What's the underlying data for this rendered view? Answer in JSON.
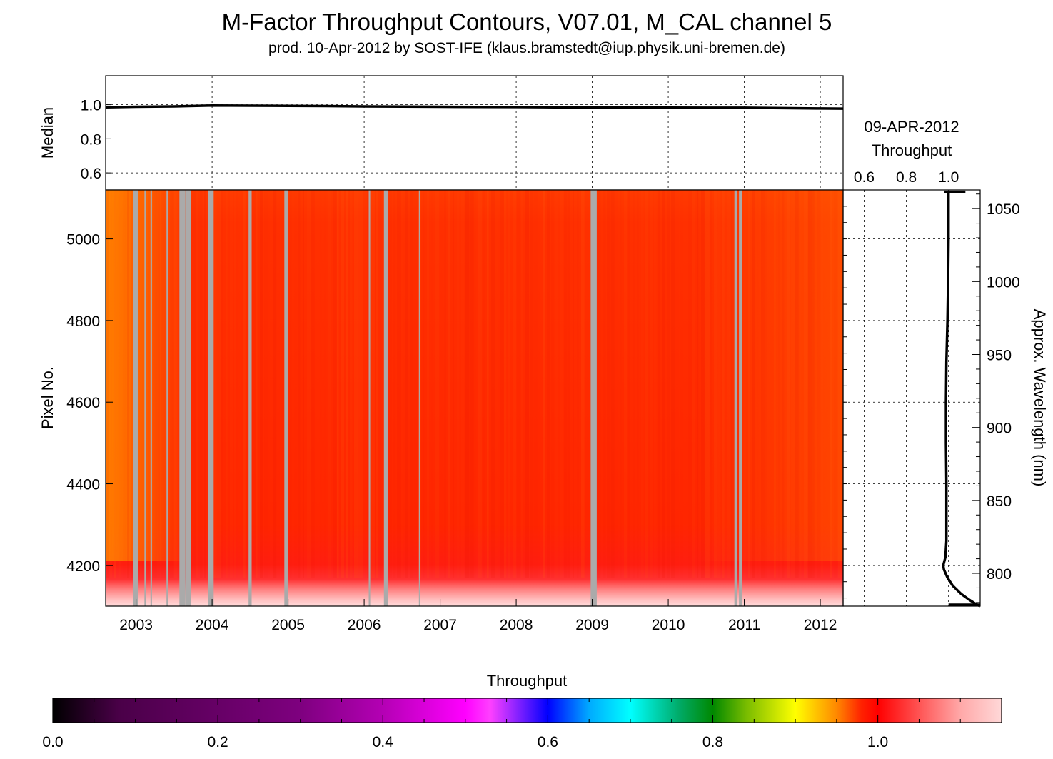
{
  "title": "M-Factor Throughput Contours, V07.01, M_CAL channel 5",
  "subtitle": "prod. 10-Apr-2012 by SOST-IFE (klaus.bramstedt@iup.physik.uni-bremen.de)",
  "chart_data": [
    {
      "type": "line",
      "name": "median-panel",
      "ylabel": "Median",
      "xlim": [
        2002.6,
        2012.3
      ],
      "ylim": [
        0.5,
        1.17
      ],
      "yticks": [
        "0.6",
        "0.8",
        "1.0"
      ],
      "grid": true,
      "series": [
        {
          "x": [
            2002.6,
            2003.0,
            2003.5,
            2004.0,
            2004.5,
            2005.0,
            2005.5,
            2006.0,
            2006.5,
            2007.0,
            2007.5,
            2008.0,
            2008.5,
            2009.0,
            2009.5,
            2010.0,
            2010.5,
            2011.0,
            2011.5,
            2012.0,
            2012.3
          ],
          "values": [
            0.985,
            0.988,
            0.99,
            0.995,
            0.994,
            0.993,
            0.992,
            0.99,
            0.989,
            0.988,
            0.987,
            0.986,
            0.985,
            0.985,
            0.984,
            0.983,
            0.982,
            0.982,
            0.98,
            0.978,
            0.977
          ]
        }
      ]
    },
    {
      "type": "heatmap",
      "name": "throughput-contours",
      "ylabel": "Pixel No.",
      "xlim": [
        2002.6,
        2012.3
      ],
      "ylim": [
        4100,
        5120
      ],
      "xticks": [
        "2003",
        "2004",
        "2005",
        "2006",
        "2007",
        "2008",
        "2009",
        "2010",
        "2011",
        "2012"
      ],
      "yticks": [
        "4200",
        "4400",
        "4600",
        "4800",
        "5000"
      ],
      "missing_data_color": "#aaaaaa",
      "gaps": [
        {
          "x0": 2002.96,
          "x1": 2003.03
        },
        {
          "x0": 2003.11,
          "x1": 2003.13
        },
        {
          "x0": 2003.19,
          "x1": 2003.21
        },
        {
          "x0": 2003.4,
          "x1": 2003.42
        },
        {
          "x0": 2003.57,
          "x1": 2003.65
        },
        {
          "x0": 2003.66,
          "x1": 2003.72
        },
        {
          "x0": 2003.95,
          "x1": 2004.02
        },
        {
          "x0": 2004.48,
          "x1": 2004.52
        },
        {
          "x0": 2004.95,
          "x1": 2005.0
        },
        {
          "x0": 2006.06,
          "x1": 2006.08
        },
        {
          "x0": 2006.26,
          "x1": 2006.31
        },
        {
          "x0": 2006.72,
          "x1": 2006.74
        },
        {
          "x0": 2008.98,
          "x1": 2009.06
        },
        {
          "x0": 2010.87,
          "x1": 2010.91
        },
        {
          "x0": 2010.93,
          "x1": 2010.97
        }
      ]
    },
    {
      "type": "line",
      "name": "throughput-profile",
      "title": "09-APR-2012",
      "xlabel": "Throughput",
      "ylabel": "Approx. Wavelength (nm)",
      "xlim": [
        0.5,
        1.15
      ],
      "xticks": [
        "0.6",
        "0.8",
        "1.0"
      ],
      "yticks_right": [
        "800",
        "850",
        "900",
        "950",
        "1000",
        "1050"
      ],
      "series": [
        {
          "pixel": [
            4100,
            4105,
            4115,
            4130,
            4150,
            4170,
            4190,
            4200,
            4220,
            4260,
            4300,
            4400,
            4500,
            4600,
            4700,
            4800,
            4900,
            5000,
            5050,
            5100,
            5112,
            5116
          ],
          "values": [
            1.15,
            1.13,
            1.1,
            1.06,
            1.02,
            0.995,
            0.978,
            0.975,
            0.985,
            0.99,
            0.99,
            0.99,
            0.988,
            0.988,
            0.99,
            0.995,
            0.998,
            1.0,
            1.0,
            1.0,
            1.0,
            1.0
          ]
        }
      ]
    },
    {
      "type": "colorbar",
      "name": "colorbar",
      "title": "Throughput",
      "range": [
        0.0,
        1.15
      ],
      "ticks": [
        "0.0",
        "0.2",
        "0.4",
        "0.6",
        "0.8",
        "1.0"
      ],
      "colors": [
        "#000000",
        "#4a0048",
        "#7e007f",
        "#b400b4",
        "#ff00ff",
        "#ff40ff",
        "#0000ff",
        "#00aaff",
        "#00ffff",
        "#00aa66",
        "#008800",
        "#77bb00",
        "#ffff00",
        "#ff8800",
        "#ff2200",
        "#ff0000",
        "#ffa8a8",
        "#ffd8d8"
      ],
      "stops": [
        0.0,
        0.08,
        0.3,
        0.4,
        0.5,
        0.53,
        0.6,
        0.65,
        0.7,
        0.76,
        0.8,
        0.84,
        0.9,
        0.95,
        0.98,
        1.0,
        1.1,
        1.15
      ]
    }
  ]
}
